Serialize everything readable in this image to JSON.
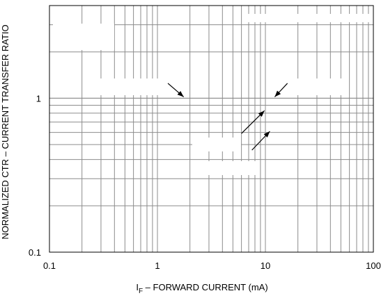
{
  "chart_data": {
    "type": "line",
    "xlabel_main": "I",
    "xlabel_sub": "F",
    "xlabel_rest": " – FORWARD CURRENT (mA)",
    "ylabel": "NORMALIZED CTR – CURRENT TRANSFER RATIO",
    "x_scale": "log",
    "y_scale": "log",
    "xlim": [
      0.1,
      100
    ],
    "ylim": [
      0.1,
      4
    ],
    "x_ticks": [
      {
        "value": 0.1,
        "label": "0.1"
      },
      {
        "value": 1,
        "label": "1"
      },
      {
        "value": 10,
        "label": "10"
      },
      {
        "value": 100,
        "label": "100"
      }
    ],
    "y_ticks": [
      {
        "value": 0.1,
        "label": "0.1"
      },
      {
        "value": 1,
        "label": "1"
      }
    ],
    "grid": true,
    "series": [],
    "annotation_arrows": [
      {
        "from": [
          1.25,
          1.25
        ],
        "to": [
          1.75,
          1.02
        ]
      },
      {
        "from": [
          16,
          1.25
        ],
        "to": [
          12.2,
          1.02
        ]
      },
      {
        "from": [
          6,
          0.59
        ],
        "to": [
          9.8,
          0.83
        ]
      },
      {
        "from": [
          7.5,
          0.46
        ],
        "to": [
          11,
          0.61
        ]
      }
    ],
    "colors": {
      "grid": "#8c8c8c",
      "frame": "#000000",
      "arrow": "#000000",
      "background": "#ffffff"
    }
  }
}
